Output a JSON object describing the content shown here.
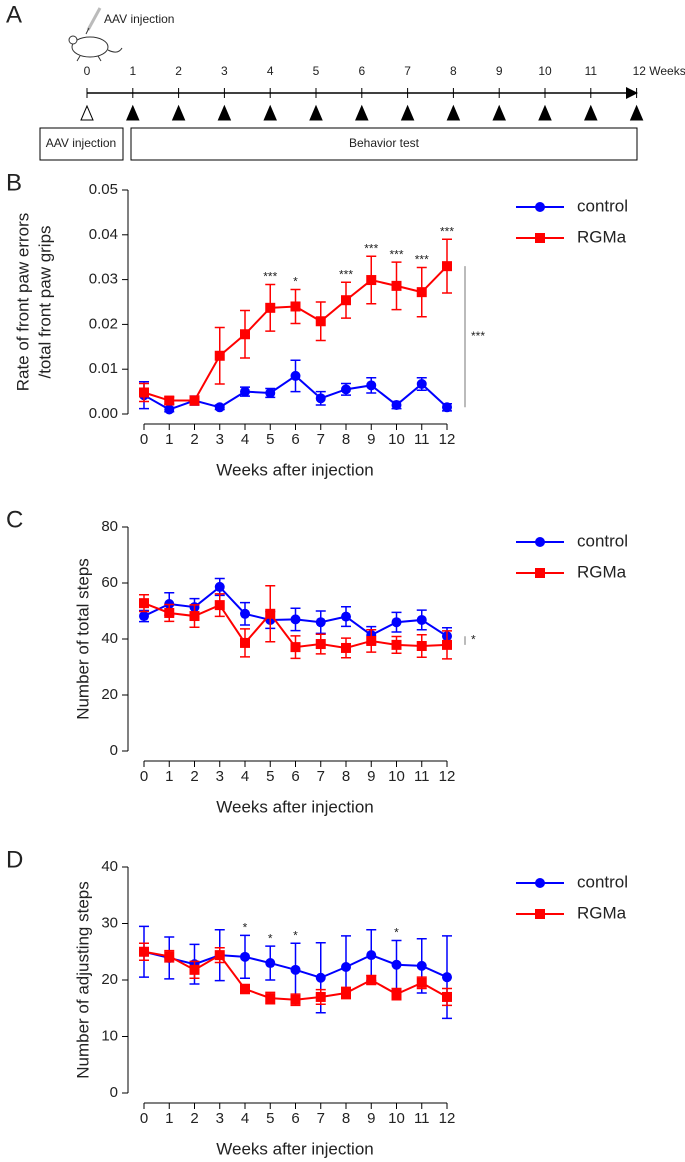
{
  "timeline": {
    "panel_label": "A",
    "icon_label": "AAV injection",
    "weeks": [
      "0",
      "1",
      "2",
      "3",
      "4",
      "5",
      "6",
      "7",
      "8",
      "9",
      "10",
      "11",
      "12 Weeks"
    ],
    "boxes": [
      "AAV injection",
      "Behavior test"
    ]
  },
  "chart_data": [
    {
      "type": "line",
      "panel_label": "B",
      "y_label": [
        "Rate of front paw errors",
        "/total front paw grips"
      ],
      "x_label": "Weeks after injection",
      "categories": [
        "0",
        "1",
        "2",
        "3",
        "4",
        "5",
        "6",
        "7",
        "8",
        "9",
        "10",
        "11",
        "12"
      ],
      "ylim": [
        0,
        0.05
      ],
      "yticks": [
        {
          "value": 0,
          "label": "0.00"
        },
        {
          "value": 0.01,
          "label": "0.01"
        },
        {
          "value": 0.02,
          "label": "0.02"
        },
        {
          "value": 0.03,
          "label": "0.03"
        },
        {
          "value": 0.04,
          "label": "0.04"
        },
        {
          "value": 0.05,
          "label": "0.05"
        }
      ],
      "group_significance": "***",
      "series": [
        {
          "name": "control",
          "color": "#0000ff",
          "marker": "circle",
          "values": [
            0.0042,
            0.001,
            0.003,
            0.0015,
            0.005,
            0.0047,
            0.0085,
            0.0035,
            0.0055,
            0.0064,
            0.002,
            0.0067,
            0.0015
          ],
          "errors": [
            0.003,
            0.0005,
            0.001,
            0.0005,
            0.001,
            0.001,
            0.0035,
            0.0015,
            0.0013,
            0.0017,
            0.0008,
            0.0014,
            0.0008
          ]
        },
        {
          "name": "RGMa",
          "color": "#ff0000",
          "marker": "square",
          "values": [
            0.0048,
            0.003,
            0.003,
            0.013,
            0.0178,
            0.0237,
            0.024,
            0.0207,
            0.0254,
            0.0299,
            0.0286,
            0.0272,
            0.033
          ],
          "errors": [
            0.002,
            0.0008,
            0.001,
            0.0063,
            0.0053,
            0.0052,
            0.0038,
            0.0043,
            0.004,
            0.0053,
            0.0053,
            0.0055,
            0.006
          ],
          "annotations": [
            null,
            null,
            null,
            null,
            null,
            "***",
            "*",
            null,
            "***",
            "***",
            "***",
            "***",
            "***"
          ]
        }
      ]
    },
    {
      "type": "line",
      "panel_label": "C",
      "y_label": "Number of total steps",
      "x_label": "Weeks after injection",
      "categories": [
        "0",
        "1",
        "2",
        "3",
        "4",
        "5",
        "6",
        "7",
        "8",
        "9",
        "10",
        "11",
        "12"
      ],
      "ylim": [
        0,
        80
      ],
      "yticks": [
        0,
        20,
        40,
        60,
        80
      ],
      "group_significance": "*",
      "series": [
        {
          "name": "control",
          "color": "#0000ff",
          "marker": "circle",
          "values": [
            48.2,
            52.5,
            51.4,
            58.6,
            49,
            46.8,
            47,
            46,
            48,
            41.4,
            46,
            46.8,
            41
          ],
          "errors": [
            2,
            4,
            3,
            3,
            4,
            3,
            4,
            4,
            3.5,
            3,
            3.5,
            3.5,
            3
          ]
        },
        {
          "name": "RGMa",
          "color": "#ff0000",
          "marker": "square",
          "values": [
            52.8,
            49.3,
            48.2,
            52.1,
            38.6,
            49,
            37.1,
            38.2,
            36.8,
            39.3,
            37.9,
            37.5,
            37.9
          ],
          "errors": [
            3,
            3,
            4,
            4,
            5,
            10,
            4,
            3.5,
            3.5,
            4,
            3,
            4,
            5
          ]
        }
      ]
    },
    {
      "type": "line",
      "panel_label": "D",
      "y_label": "Number of adjusting steps",
      "x_label": "Weeks after injection",
      "categories": [
        "0",
        "1",
        "2",
        "3",
        "4",
        "5",
        "6",
        "7",
        "8",
        "9",
        "10",
        "11",
        "12"
      ],
      "ylim": [
        0,
        40
      ],
      "yticks": [
        0,
        10,
        20,
        30,
        40
      ],
      "series": [
        {
          "name": "control",
          "color": "#0000ff",
          "marker": "circle",
          "values": [
            25,
            23.9,
            22.8,
            24.4,
            24.1,
            23,
            21.8,
            20.4,
            22.3,
            24.4,
            22.7,
            22.5,
            20.5
          ],
          "errors": [
            4.5,
            3.7,
            3.5,
            4.5,
            3.8,
            3,
            4.7,
            6.2,
            5.5,
            4.5,
            4.3,
            4.8,
            7.3
          ],
          "annotations": [
            null,
            null,
            null,
            null,
            "*",
            "*",
            "*",
            null,
            null,
            null,
            "*",
            null,
            null
          ]
        },
        {
          "name": "RGMa",
          "color": "#ff0000",
          "marker": "square",
          "values": [
            25,
            24.2,
            21.8,
            24.4,
            18.4,
            16.8,
            16.5,
            17,
            17.7,
            20,
            17.5,
            19.5,
            17
          ],
          "errors": [
            1.5,
            1,
            1.5,
            1.3,
            0.8,
            1,
            1,
            1.3,
            1,
            0.8,
            1,
            1,
            1.5
          ]
        }
      ]
    }
  ]
}
